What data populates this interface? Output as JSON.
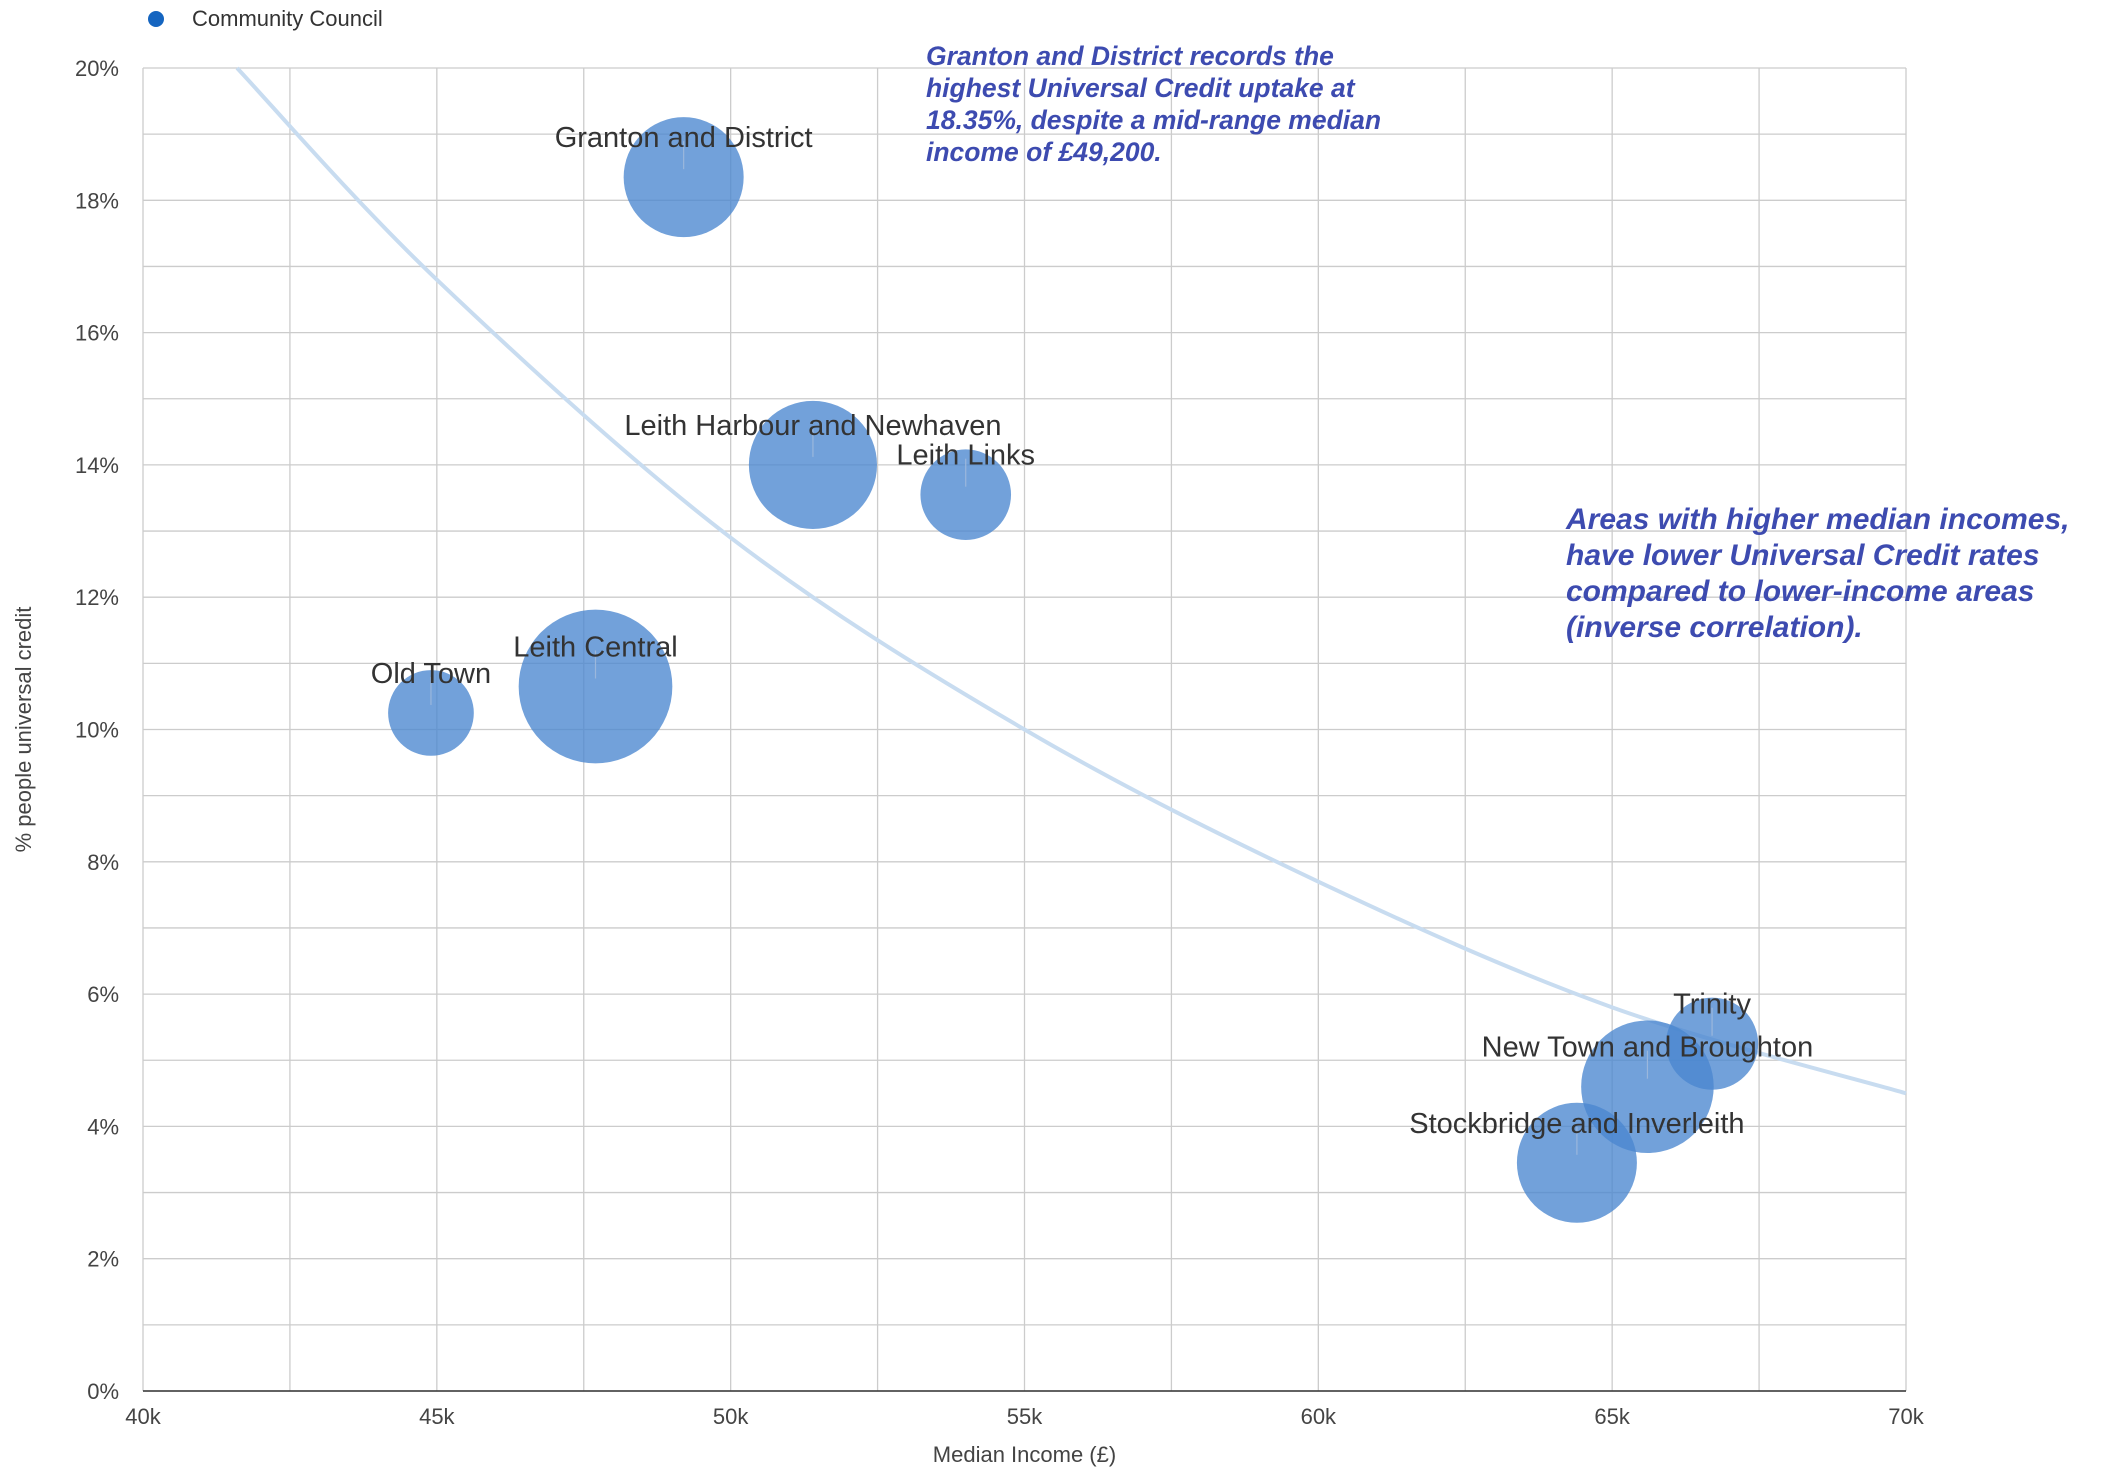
{
  "legend": {
    "label": "Community Council",
    "color": "#1565c0"
  },
  "annotations": [
    "Granton and District records the\nhighest Universal Credit uptake at\n18.35%, despite a mid-range median\nincome of £49,200.",
    "Areas with higher median incomes,\nhave lower Universal Credit rates\ncompared to lower-income areas\n(inverse correlation)."
  ],
  "colors": {
    "bubble": "#4a86d0",
    "trend": "#c8dcf0",
    "grid": "#cccccc",
    "annotation": "#3d4bb0"
  },
  "chart_data": {
    "type": "bubble",
    "xlabel": "Median Income (£)",
    "ylabel": "% people universal credit",
    "xlim": [
      40000,
      70000
    ],
    "ylim": [
      0,
      20
    ],
    "x_ticks": [
      "40k",
      "45k",
      "50k",
      "55k",
      "60k",
      "65k",
      "70k"
    ],
    "y_ticks": [
      "0%",
      "2%",
      "4%",
      "6%",
      "8%",
      "10%",
      "12%",
      "14%",
      "16%",
      "18%",
      "20%"
    ],
    "grid": true,
    "legend_position": "top-left",
    "series": [
      {
        "name": "Community Council",
        "points": [
          {
            "label": "Granton and District",
            "x": 49200,
            "y": 18.35,
            "size": 1.0
          },
          {
            "label": "Leith Harbour and Newhaven",
            "x": 51400,
            "y": 14.0,
            "size": 1.14
          },
          {
            "label": "Leith Links",
            "x": 54000,
            "y": 13.55,
            "size": 0.57
          },
          {
            "label": "Old Town",
            "x": 44900,
            "y": 10.25,
            "size": 0.51
          },
          {
            "label": "Leith Central",
            "x": 47700,
            "y": 10.65,
            "size": 1.64
          },
          {
            "label": "Trinity",
            "x": 66700,
            "y": 5.25,
            "size": 0.59
          },
          {
            "label": "New Town and Broughton",
            "x": 65600,
            "y": 4.6,
            "size": 1.22
          },
          {
            "label": "Stockbridge and Inverleith",
            "x": 64400,
            "y": 3.45,
            "size": 1.0
          }
        ]
      }
    ],
    "trendline": {
      "type": "power",
      "points": [
        [
          41600,
          20.0
        ],
        [
          45000,
          16.8
        ],
        [
          50000,
          12.9
        ],
        [
          55000,
          10.0
        ],
        [
          60000,
          7.7
        ],
        [
          65000,
          5.8
        ],
        [
          70000,
          4.5
        ]
      ]
    }
  }
}
